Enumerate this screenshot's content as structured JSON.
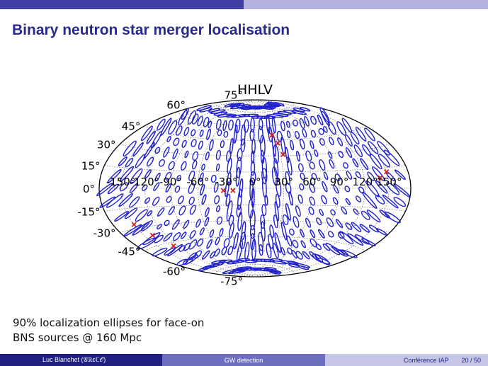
{
  "slide": {
    "title": "Binary neutron star merger localisation",
    "caption_line1": "90% localization ellipses for face-on",
    "caption_line2": "BNS sources @ 160 Mpc"
  },
  "figure": {
    "plot_title": "HHLV",
    "lat_labels": [
      "75°",
      "60°",
      "45°",
      "30°",
      "15°",
      "0°",
      "-15°",
      "-30°",
      "-45°",
      "-60°",
      "-75°"
    ],
    "lon_labels": [
      "-150°",
      "-120°",
      "-90°",
      "-60°",
      "-30°",
      "0°",
      "30°",
      "60°",
      "90°",
      "120°",
      "150°"
    ],
    "ellipse_color": "#2222cc",
    "marker_color": "#cc2222"
  },
  "footer": {
    "author": "Luc Blanchet  (𝒢ℝεℂ𝒪)",
    "talk": "GW detection",
    "venue": "Conférence IAP",
    "page": "20 / 50"
  }
}
